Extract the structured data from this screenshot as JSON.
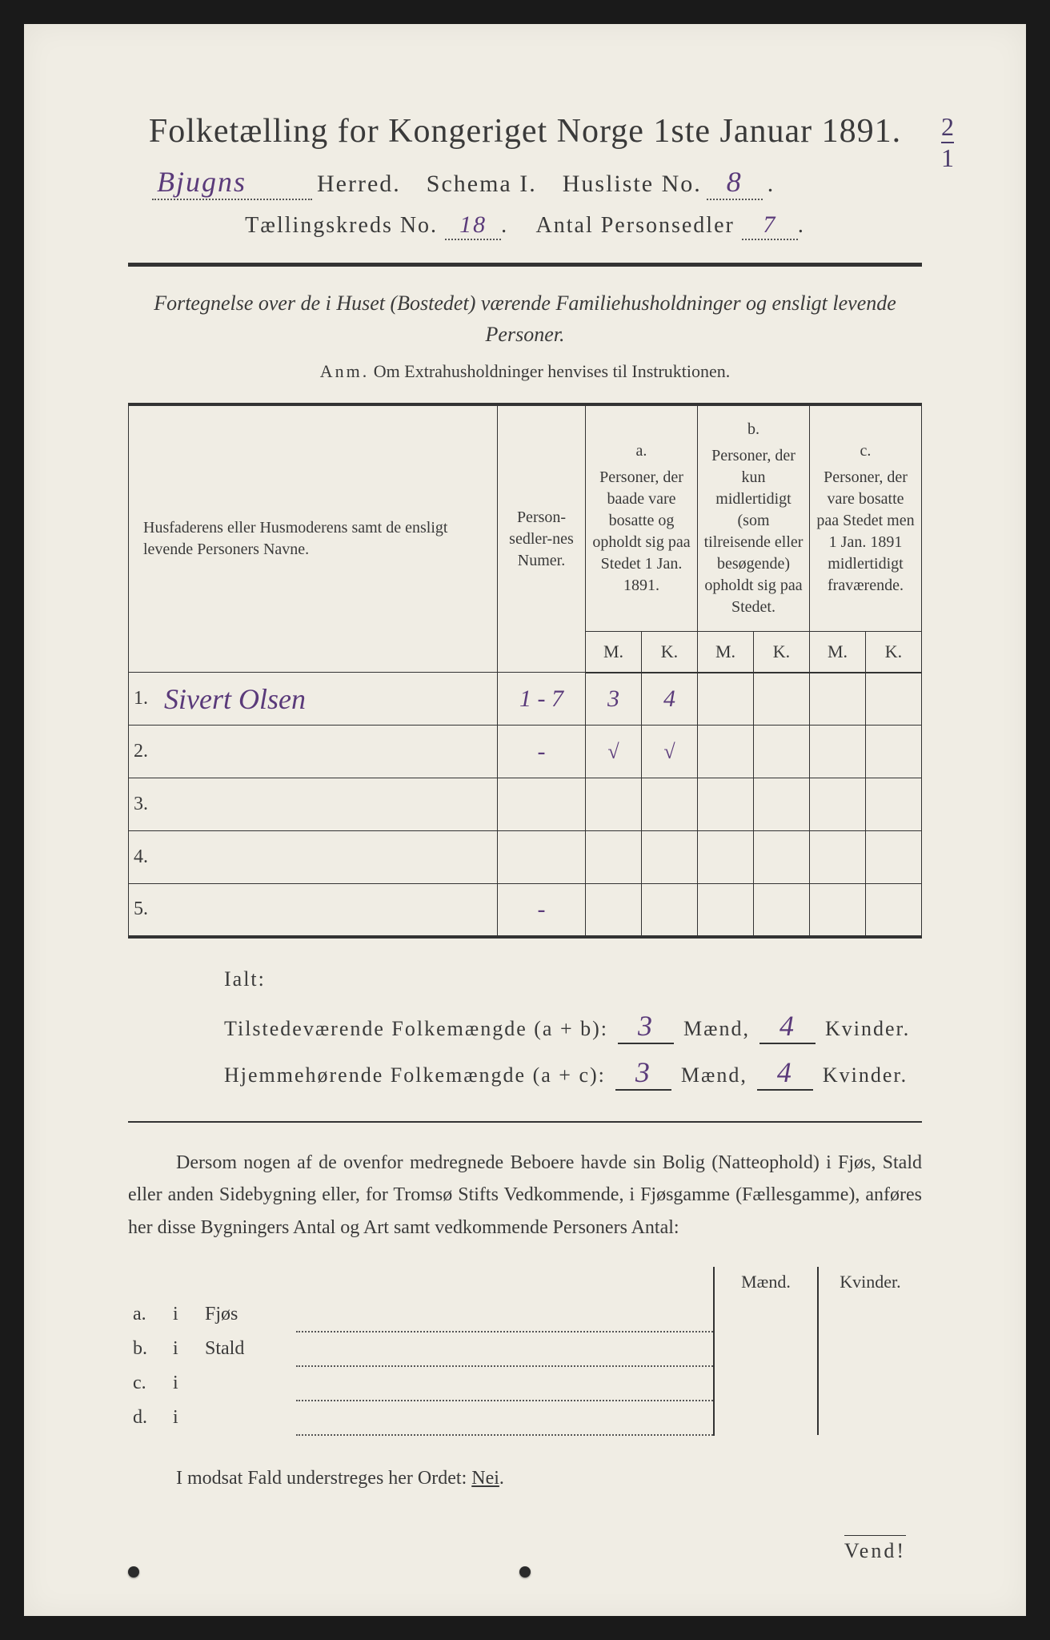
{
  "header": {
    "title": "Folketælling for Kongeriget Norge 1ste Januar 1891.",
    "herred_name": "Bjugns",
    "herred_label": "Herred.",
    "schema_label": "Schema I.",
    "husliste_label": "Husliste No.",
    "husliste_no": "8",
    "kreds_label": "Tællingskreds No.",
    "kreds_no": "18",
    "personsedler_label": "Antal Personsedler",
    "personsedler_no": "7",
    "corner_num": "2",
    "corner_den": "1"
  },
  "subtitle": "Fortegnelse over de i Huset (Bostedet) værende Familiehusholdninger og ensligt levende Personer.",
  "anm_label": "Anm.",
  "anm_text": "Om Extrahusholdninger henvises til Instruktionen.",
  "table": {
    "col_names": "Husfaderens eller Husmoderens samt de ensligt levende Personers Navne.",
    "col_num": "Person-sedler-nes Numer.",
    "col_a_label": "a.",
    "col_a": "Personer, der baade vare bosatte og opholdt sig paa Stedet 1 Jan. 1891.",
    "col_b_label": "b.",
    "col_b": "Personer, der kun midlertidigt (som tilreisende eller besøgende) opholdt sig paa Stedet.",
    "col_c_label": "c.",
    "col_c": "Personer, der vare bosatte paa Stedet men 1 Jan. 1891 midlertidigt fraværende.",
    "M": "M.",
    "K": "K.",
    "rows": [
      {
        "n": "1.",
        "name": "Sivert Olsen",
        "num": "1 - 7",
        "aM": "3",
        "aK": "4",
        "bM": "",
        "bK": "",
        "cM": "",
        "cK": ""
      },
      {
        "n": "2.",
        "name": "",
        "num": "-",
        "aM": "√",
        "aK": "√",
        "bM": "",
        "bK": "",
        "cM": "",
        "cK": ""
      },
      {
        "n": "3.",
        "name": "",
        "num": "",
        "aM": "",
        "aK": "",
        "bM": "",
        "bK": "",
        "cM": "",
        "cK": ""
      },
      {
        "n": "4.",
        "name": "",
        "num": "",
        "aM": "",
        "aK": "",
        "bM": "",
        "bK": "",
        "cM": "",
        "cK": ""
      },
      {
        "n": "5.",
        "name": "",
        "num": "-",
        "aM": "",
        "aK": "",
        "bM": "",
        "bK": "",
        "cM": "",
        "cK": ""
      }
    ]
  },
  "ialt": {
    "head": "Ialt:",
    "row1_label": "Tilstedeværende Folkemængde (a + b):",
    "row2_label": "Hjemmehørende Folkemængde (a + c):",
    "maend": "Mænd,",
    "kvinder": "Kvinder.",
    "r1_m": "3",
    "r1_k": "4",
    "r2_m": "3",
    "r2_k": "4"
  },
  "dersom": "Dersom nogen af de ovenfor medregnede Beboere havde sin Bolig (Natteophold) i Fjøs, Stald eller anden Sidebygning eller, for Tromsø Stifts Vedkommende, i Fjøsgamme (Fællesgamme), anføres her disse Bygningers Antal og Art samt vedkommende Personers Antal:",
  "bld": {
    "maend": "Mænd.",
    "kvinder": "Kvinder.",
    "rows": [
      {
        "lab": "a.",
        "i": "i",
        "type": "Fjøs"
      },
      {
        "lab": "b.",
        "i": "i",
        "type": "Stald"
      },
      {
        "lab": "c.",
        "i": "i",
        "type": ""
      },
      {
        "lab": "d.",
        "i": "i",
        "type": ""
      }
    ]
  },
  "modsat_pre": "I modsat Fald understreges her Ordet: ",
  "modsat_nei": "Nei",
  "vend": "Vend!",
  "colors": {
    "paper": "#f0ede4",
    "ink": "#3a3a3a",
    "handwriting": "#5a3a7a"
  }
}
